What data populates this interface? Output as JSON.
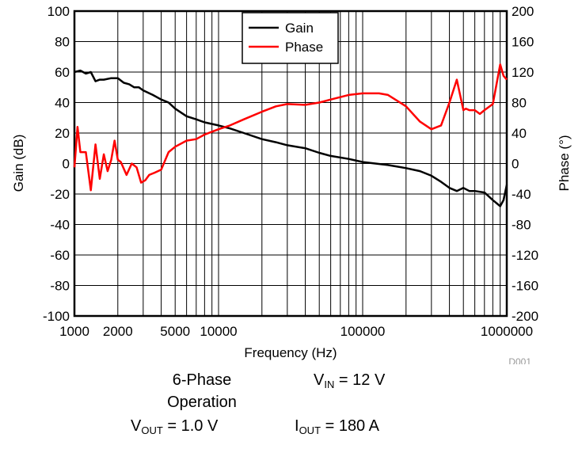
{
  "chart_data": {
    "type": "line",
    "figure_id": "D001",
    "xlabel": "Frequency (Hz)",
    "ylabel_left": "Gain (dB)",
    "ylabel_right": "Phase (°)",
    "x_scale": "log",
    "xlim": [
      1000,
      1000000
    ],
    "ylim_left": [
      -100,
      100
    ],
    "ylim_right": [
      -200,
      200
    ],
    "x_tick_labels": [
      {
        "value": 1000,
        "label": "1000"
      },
      {
        "value": 2000,
        "label": "2000"
      },
      {
        "value": 5000,
        "label": "5000"
      },
      {
        "value": 10000,
        "label": "10000"
      },
      {
        "value": 100000,
        "label": "100000"
      },
      {
        "value": 1000000,
        "label": "1000000"
      }
    ],
    "y_left_ticks": [
      100,
      80,
      60,
      40,
      20,
      0,
      -20,
      -40,
      -60,
      -80,
      -100
    ],
    "y_right_ticks": [
      200,
      160,
      120,
      80,
      40,
      0,
      -40,
      -80,
      -120,
      -160,
      -200
    ],
    "grid": true,
    "legend_position": "top-center",
    "series": [
      {
        "name": "Gain",
        "axis": "left",
        "color": "#000000",
        "x": [
          1000,
          1100,
          1200,
          1300,
          1400,
          1500,
          1600,
          1800,
          2000,
          2200,
          2400,
          2600,
          2800,
          3000,
          3500,
          4000,
          4500,
          5000,
          6000,
          7000,
          8000,
          10000,
          12000,
          15000,
          20000,
          25000,
          30000,
          40000,
          50000,
          60000,
          80000,
          100000,
          150000,
          200000,
          250000,
          300000,
          350000,
          400000,
          450000,
          500000,
          550000,
          600000,
          700000,
          800000,
          900000,
          950000,
          1000000
        ],
        "values": [
          60,
          61,
          59,
          60,
          54,
          55,
          55,
          56,
          56,
          53,
          52,
          50,
          50,
          48,
          45,
          42,
          40,
          36,
          31,
          29,
          27,
          25,
          23,
          20,
          16,
          14,
          12,
          10,
          7,
          5,
          3,
          1,
          -1,
          -3,
          -5,
          -8,
          -12,
          -16,
          -18,
          -16,
          -18,
          -18,
          -19,
          -24,
          -28,
          -24,
          -14
        ]
      },
      {
        "name": "Phase",
        "axis": "right",
        "color": "#ff0000",
        "x": [
          1000,
          1050,
          1100,
          1200,
          1300,
          1400,
          1500,
          1600,
          1700,
          1800,
          1900,
          2000,
          2100,
          2300,
          2500,
          2700,
          2900,
          3100,
          3300,
          3600,
          4000,
          4500,
          5000,
          6000,
          7000,
          8000,
          10000,
          12000,
          15000,
          20000,
          25000,
          30000,
          40000,
          50000,
          60000,
          80000,
          100000,
          130000,
          150000,
          200000,
          250000,
          300000,
          350000,
          400000,
          450000,
          500000,
          520000,
          550000,
          600000,
          650000,
          700000,
          800000,
          900000,
          950000,
          1000000
        ],
        "values": [
          -5,
          48,
          15,
          15,
          -35,
          25,
          -20,
          12,
          -10,
          5,
          30,
          5,
          2,
          -15,
          0,
          -5,
          -25,
          -22,
          -15,
          -12,
          -8,
          15,
          22,
          30,
          32,
          38,
          45,
          50,
          58,
          68,
          75,
          78,
          77,
          80,
          84,
          90,
          92,
          92,
          90,
          75,
          55,
          45,
          50,
          80,
          110,
          70,
          72,
          70,
          70,
          65,
          70,
          78,
          130,
          115,
          110
        ]
      }
    ]
  },
  "conditions": {
    "phases": "6-Phase",
    "operation": "Operation",
    "vin_main": "V",
    "vin_sub": "IN",
    "vin_value": "= 12 V",
    "vout_main": "V",
    "vout_sub": "OUT",
    "vout_value": "= 1.0 V",
    "iout_main": "I",
    "iout_sub": "OUT",
    "iout_value": "= 180 A"
  }
}
